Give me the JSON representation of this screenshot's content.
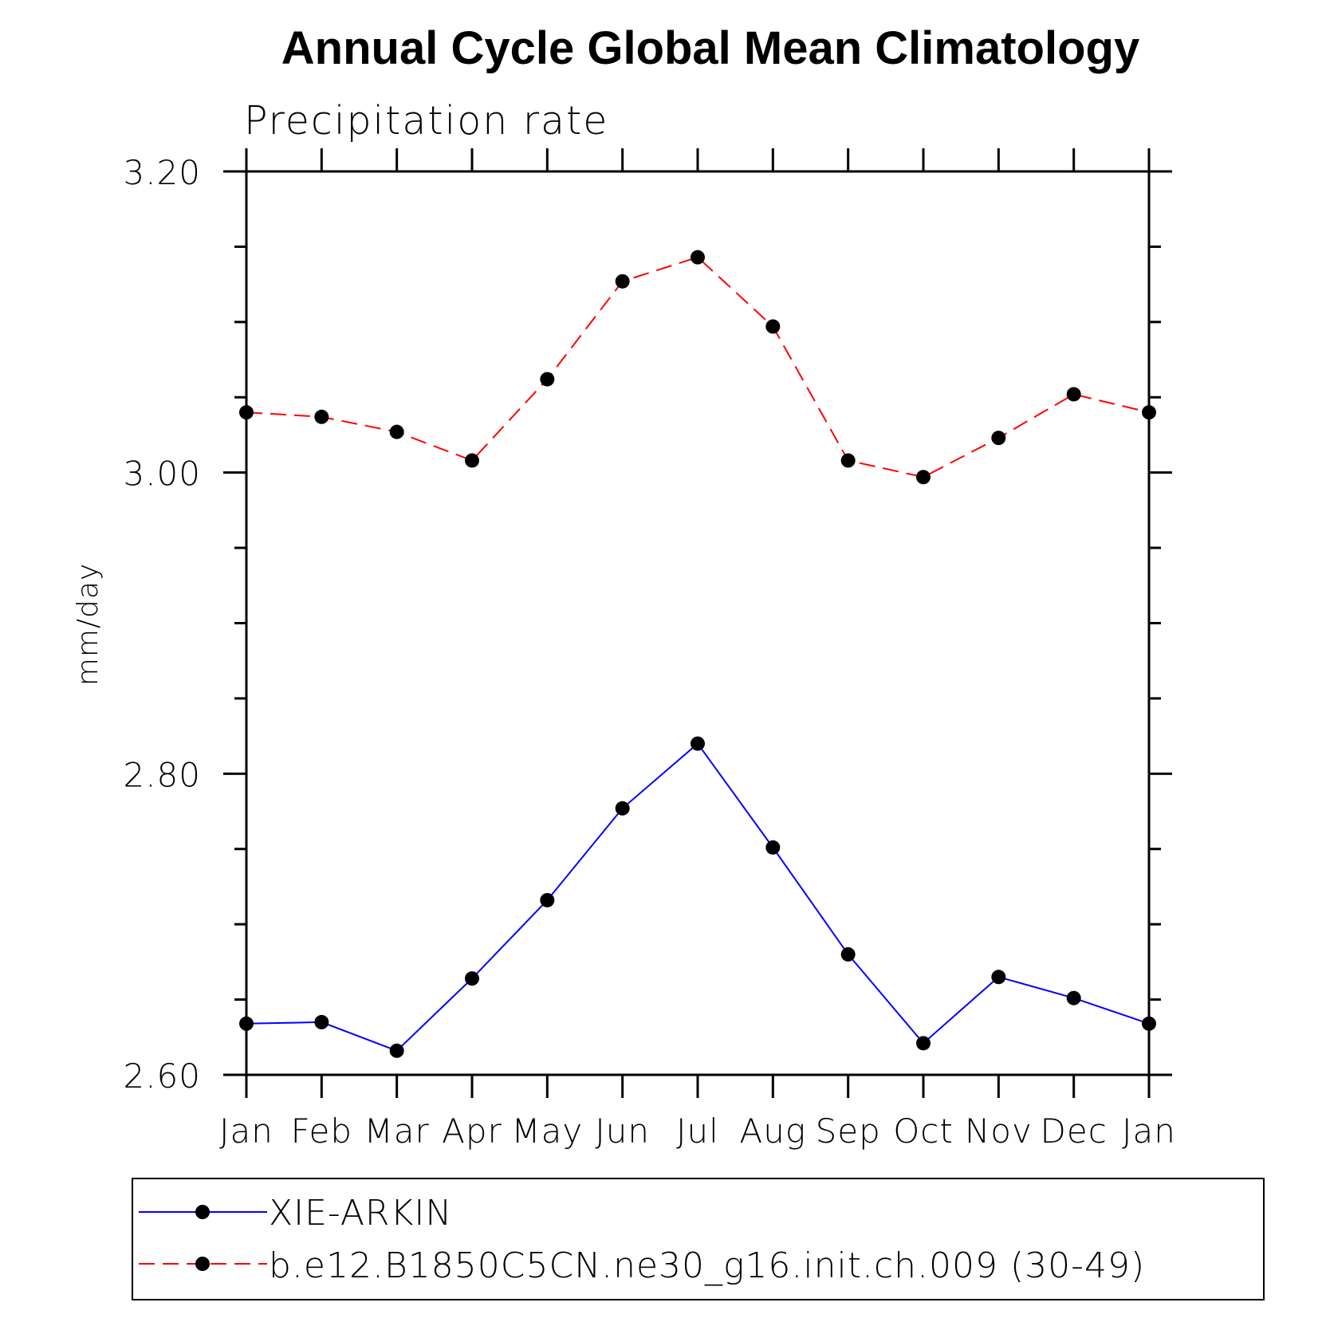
{
  "chart_data": {
    "type": "line",
    "title": "Annual Cycle Global Mean Climatology",
    "subtitle": "Precipitation rate",
    "xlabel": "",
    "ylabel": "mm/day",
    "categories": [
      "Jan",
      "Feb",
      "Mar",
      "Apr",
      "May",
      "Jun",
      "Jul",
      "Aug",
      "Sep",
      "Oct",
      "Nov",
      "Dec",
      "Jan"
    ],
    "ylim": [
      2.6,
      3.2
    ],
    "yticks_major": [
      "2.60",
      "2.80",
      "3.00",
      "3.20"
    ],
    "ytick_minor_step": 0.05,
    "grid": false,
    "legend_position": "bottom",
    "series": [
      {
        "name": "XIE-ARKIN",
        "color": "#0000ff",
        "line_style": "solid",
        "marker": "filled-circle",
        "values": [
          2.634,
          2.635,
          2.616,
          2.664,
          2.716,
          2.777,
          2.82,
          2.751,
          2.68,
          2.621,
          2.665,
          2.651,
          2.634
        ]
      },
      {
        "name": "b.e12.B1850C5CN.ne30_g16.init.ch.009 (30-49)",
        "color": "#ff0000",
        "line_style": "dashed",
        "marker": "filled-circle",
        "values": [
          3.04,
          3.037,
          3.027,
          3.008,
          3.062,
          3.127,
          3.143,
          3.097,
          3.008,
          2.997,
          3.023,
          3.052,
          3.04
        ]
      }
    ]
  }
}
